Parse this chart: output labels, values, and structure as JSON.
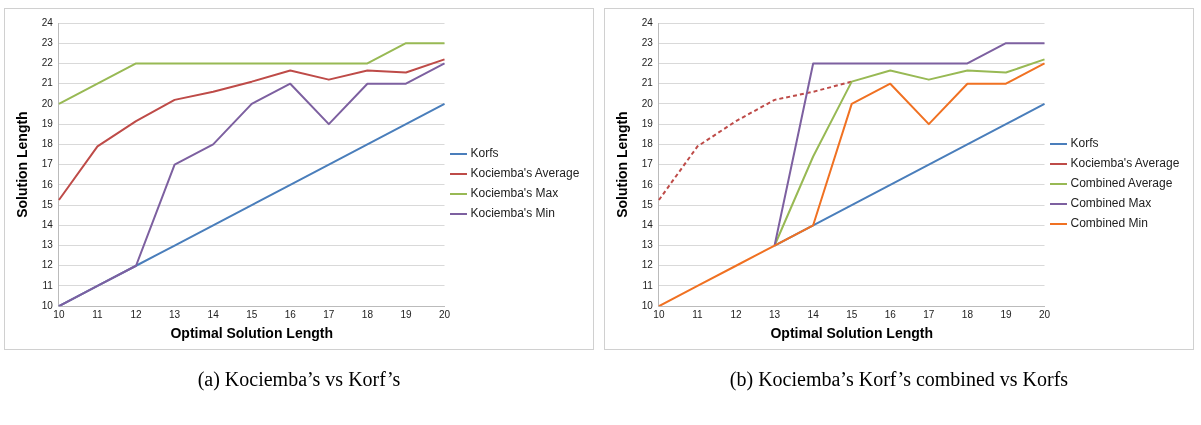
{
  "chart_data": [
    {
      "type": "line",
      "title": "(a) Kociemba’s vs Korf’s",
      "xlabel": "Optimal Solution Length",
      "ylabel": "Solution Length",
      "categories": [
        "10",
        "11",
        "12",
        "13",
        "14",
        "15",
        "16",
        "17",
        "18",
        "19",
        "20"
      ],
      "ylim": [
        10,
        24
      ],
      "yticks": [
        10,
        11,
        12,
        13,
        14,
        15,
        16,
        17,
        18,
        19,
        20,
        21,
        22,
        23,
        24
      ],
      "grid": "y",
      "legend": "right",
      "marker": "none",
      "line_style": "solid",
      "series": [
        {
          "name": "Korfs",
          "color": "#4a7ebb",
          "values": [
            10,
            11,
            12,
            13,
            14,
            15,
            16,
            17,
            18,
            19,
            20
          ]
        },
        {
          "name": "Kociemba's Average",
          "color": "#be4b48",
          "values": [
            15.25,
            17.9,
            19.15,
            20.2,
            20.6,
            21.1,
            21.65,
            21.2,
            21.65,
            21.55,
            22.2
          ]
        },
        {
          "name": "Kociemba's Max",
          "color": "#98b954",
          "values": [
            20,
            21,
            22,
            22,
            22,
            22,
            22,
            22,
            22,
            23,
            23
          ]
        },
        {
          "name": "Kociemba's Min",
          "color": "#7d60a0",
          "values": [
            10,
            11,
            12,
            17,
            18,
            20,
            21,
            19,
            21,
            21,
            22
          ]
        }
      ]
    },
    {
      "type": "line",
      "title": "(b) Kociemba’s Korf’s combined vs Korfs",
      "xlabel": "Optimal Solution Length",
      "ylabel": "Solution Length",
      "categories": [
        "10",
        "11",
        "12",
        "13",
        "14",
        "15",
        "16",
        "17",
        "18",
        "19",
        "20"
      ],
      "ylim": [
        10,
        24
      ],
      "yticks": [
        10,
        11,
        12,
        13,
        14,
        15,
        16,
        17,
        18,
        19,
        20,
        21,
        22,
        23,
        24
      ],
      "grid": "y",
      "legend": "right",
      "marker": "none",
      "line_style": "solid",
      "series": [
        {
          "name": "Korfs",
          "color": "#4a7ebb",
          "values": [
            null,
            null,
            null,
            13,
            14,
            15,
            16,
            17,
            18,
            19,
            20
          ]
        },
        {
          "name": "Kociemba's Average",
          "color": "#be4b48",
          "line_style": "dashed",
          "values": [
            15.25,
            17.9,
            19.15,
            20.2,
            20.6,
            21.1,
            null,
            null,
            null,
            null,
            null
          ]
        },
        {
          "name": "Combined Average",
          "color": "#98b954",
          "values": [
            null,
            null,
            null,
            13,
            17.4,
            21.1,
            21.65,
            21.2,
            21.65,
            21.55,
            22.2
          ]
        },
        {
          "name": "Combined Max",
          "color": "#7d60a0",
          "values": [
            null,
            null,
            null,
            13,
            22,
            22,
            22,
            22,
            22,
            23,
            23
          ]
        },
        {
          "name": "Combined Min",
          "color": "#f07122",
          "values": [
            10,
            11,
            12,
            13,
            14,
            20,
            21,
            19,
            21,
            21,
            22
          ]
        }
      ]
    }
  ]
}
